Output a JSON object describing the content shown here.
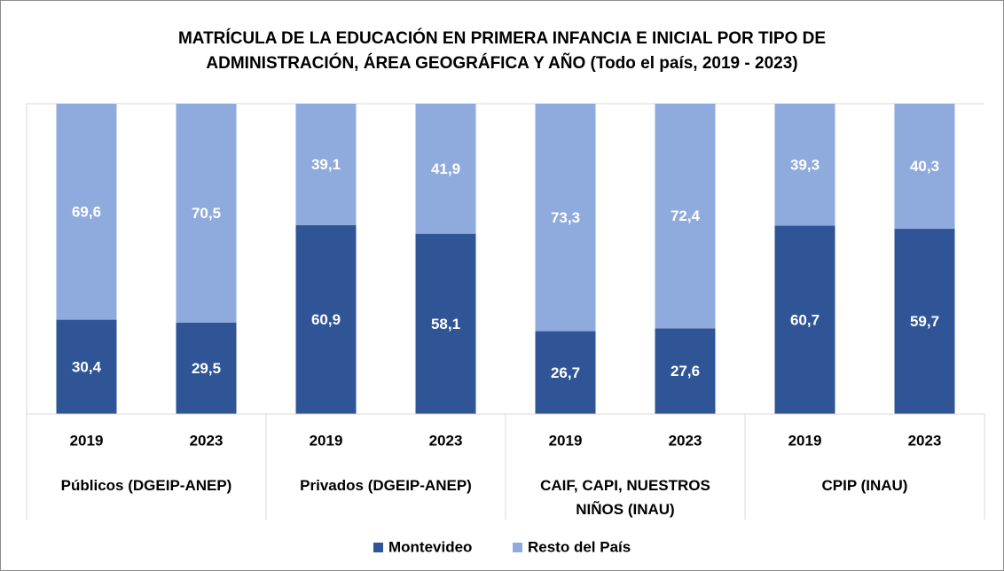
{
  "chart_data": {
    "type": "stacked_bar",
    "title": "MATRÍCULA DE LA EDUCACIÓN EN PRIMERA INFANCIA E INICIAL POR TIPO DE ADMINISTRACIÓN, ÁREA GEOGRÁFICA Y AÑO  (Todo el país, 2019 - 2023)",
    "categories": [
      "2019",
      "2023",
      "2019",
      "2023",
      "2019",
      "2023",
      "2019",
      "2023"
    ],
    "groups": [
      "Públicos (DGEIP-ANEP)",
      "Privados (DGEIP-ANEP)",
      "CAIF, CAPI, NUESTROS NIÑOS (INAU)",
      "CPIP (INAU)"
    ],
    "ylim": [
      0,
      100
    ],
    "series": [
      {
        "name": "Montevideo",
        "color": "#2f5597",
        "values": [
          30.4,
          29.5,
          60.9,
          58.1,
          26.7,
          27.6,
          60.7,
          59.7
        ],
        "value_labels": [
          "30,4",
          "29,5",
          "60,9",
          "58,1",
          "26,7",
          "27,6",
          "60,7",
          "59,7"
        ]
      },
      {
        "name": "Resto del País",
        "color": "#8faadc",
        "values": [
          69.6,
          70.5,
          39.1,
          41.9,
          73.3,
          72.4,
          39.3,
          40.3
        ],
        "value_labels": [
          "69,6",
          "70,5",
          "39,1",
          "41,9",
          "73,3",
          "72,4",
          "39,3",
          "40,3"
        ]
      }
    ],
    "legend": "bottom"
  }
}
